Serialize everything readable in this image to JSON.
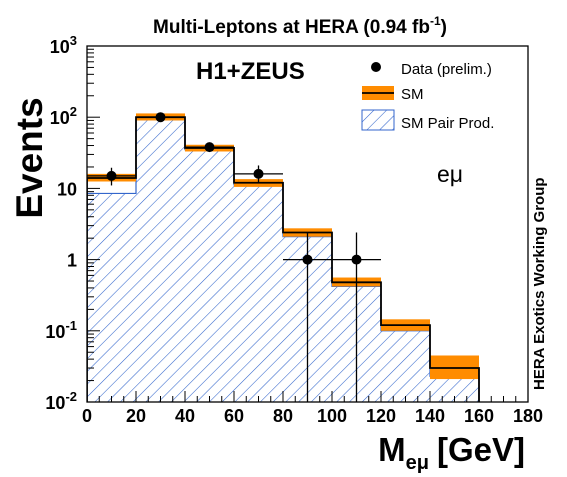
{
  "chart_data": {
    "type": "bar",
    "title_main": "Multi-Leptons at HERA (0.94 fb",
    "title_sup": "-1",
    "title_end": ")",
    "experiment_label": "H1+ZEUS",
    "channel_label": "eμ",
    "side_label": "HERA Exotics Working Group",
    "ylabel": "Events",
    "xlabel_main": "M",
    "xlabel_sub": "eμ",
    "xlabel_unit": "[GeV]",
    "xlim": [
      0,
      180
    ],
    "ylim": [
      0.01,
      1000
    ],
    "y_scale": "log",
    "x_ticks": [
      "0",
      "20",
      "40",
      "60",
      "80",
      "100",
      "120",
      "140",
      "160",
      "180"
    ],
    "y_ticks": [
      {
        "value": 0.01,
        "base": "10",
        "sup": "-2"
      },
      {
        "value": 0.1,
        "base": "10",
        "sup": "-1"
      },
      {
        "value": 1,
        "base": "1",
        "sup": ""
      },
      {
        "value": 10,
        "base": "10",
        "sup": ""
      },
      {
        "value": 100,
        "base": "10",
        "sup": "2"
      },
      {
        "value": 1000,
        "base": "10",
        "sup": "3"
      }
    ],
    "legend": {
      "placement": "top-right",
      "entries": [
        {
          "key": "data",
          "label": "Data (prelim.)"
        },
        {
          "key": "sm",
          "label": "SM"
        },
        {
          "key": "pair",
          "label": "SM Pair Prod."
        }
      ]
    },
    "bins": [
      0,
      20,
      40,
      60,
      80,
      100,
      120,
      140,
      160
    ],
    "sm": [
      14,
      100,
      37,
      12,
      2.4,
      0.48,
      0.12,
      0.03
    ],
    "sm_err": [
      [
        12.5,
        16
      ],
      [
        90,
        113
      ],
      [
        33,
        41
      ],
      [
        10.5,
        13.5
      ],
      [
        2.1,
        2.75
      ],
      [
        0.42,
        0.56
      ],
      [
        0.1,
        0.145
      ],
      [
        0.021,
        0.045
      ]
    ],
    "sm_pair": [
      8.5,
      92,
      35,
      11.2,
      2.1,
      0.42,
      0.1,
      0.023
    ],
    "data": [
      {
        "x": 10,
        "y": 15,
        "ylo": 11,
        "yhi": 19.5
      },
      {
        "x": 30,
        "y": 100
      },
      {
        "x": 50,
        "y": 38
      },
      {
        "x": 70,
        "y": 16,
        "ylo": 12,
        "yhi": 21
      },
      {
        "x": 90,
        "y": 1,
        "ylo": 0.01,
        "yhi": 2.4
      },
      {
        "x": 110,
        "y": 1,
        "ylo": 0.01,
        "yhi": 2.4
      }
    ],
    "colors": {
      "sm_band": "#ff8c00",
      "pair_hatch": "#3366cc",
      "sm_line": "#000000",
      "data": "#000000"
    }
  }
}
